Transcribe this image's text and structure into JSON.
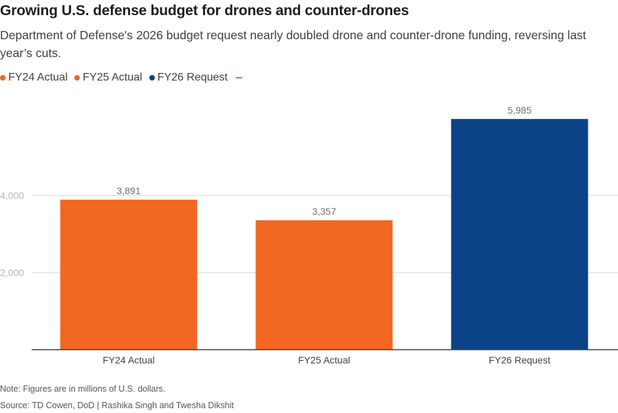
{
  "header": {
    "title": "Growing U.S. defense budget for drones and counter-drones",
    "subtitle": "Department of Defense's 2026 budget request nearly doubled drone and counter-drone funding, reversing last year’s cuts."
  },
  "legend": {
    "items": [
      {
        "label": "FY24 Actual",
        "color": "#f26722"
      },
      {
        "label": "FY25 Actual",
        "color": "#f26722"
      },
      {
        "label": "FY26 Request",
        "color": "#0b4387"
      }
    ],
    "dash_color": "#f26722"
  },
  "chart_data": {
    "type": "bar",
    "title": "Growing U.S. defense budget for drones and counter-drones",
    "categories": [
      "FY24 Actual",
      "FY25 Actual",
      "FY26 Request"
    ],
    "values": [
      3891,
      3357,
      5985
    ],
    "value_labels": [
      "3,891",
      "3,357",
      "5,985"
    ],
    "colors": [
      "#f26722",
      "#f26722",
      "#0b4387"
    ],
    "yticks": [
      2000,
      4000
    ],
    "ytick_labels": [
      "2,000",
      "4,000"
    ],
    "ylim": [
      0,
      6500
    ],
    "xlabel": "",
    "ylabel": "",
    "grid": true,
    "legend_position": "top-left"
  },
  "footer": {
    "note": "Note: Figures are in millions of U.S. dollars.",
    "source": "Source: TD Cowen, DoD | Rashika Singh and Twesha Dikshit"
  }
}
